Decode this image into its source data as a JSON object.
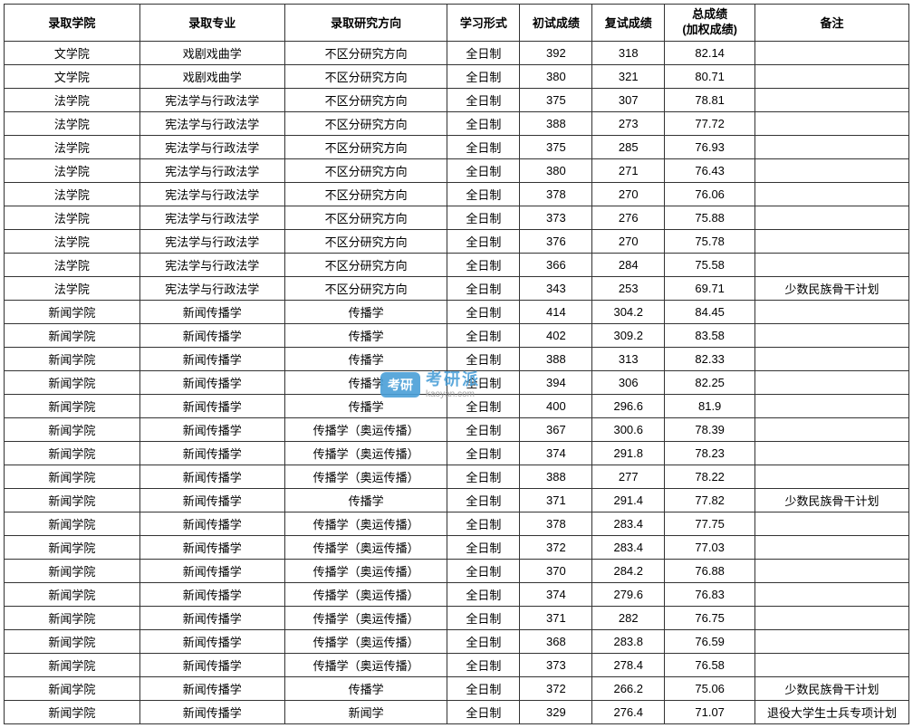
{
  "table": {
    "columns": [
      "录取学院",
      "录取专业",
      "录取研究方向",
      "学习形式",
      "初试成绩",
      "复试成绩",
      "总成绩\n(加权成绩)",
      "备注"
    ],
    "header_total_line1": "总成绩",
    "header_total_line2": "(加权成绩)",
    "rows": [
      [
        "文学院",
        "戏剧戏曲学",
        "不区分研究方向",
        "全日制",
        "392",
        "318",
        "82.14",
        ""
      ],
      [
        "文学院",
        "戏剧戏曲学",
        "不区分研究方向",
        "全日制",
        "380",
        "321",
        "80.71",
        ""
      ],
      [
        "法学院",
        "宪法学与行政法学",
        "不区分研究方向",
        "全日制",
        "375",
        "307",
        "78.81",
        ""
      ],
      [
        "法学院",
        "宪法学与行政法学",
        "不区分研究方向",
        "全日制",
        "388",
        "273",
        "77.72",
        ""
      ],
      [
        "法学院",
        "宪法学与行政法学",
        "不区分研究方向",
        "全日制",
        "375",
        "285",
        "76.93",
        ""
      ],
      [
        "法学院",
        "宪法学与行政法学",
        "不区分研究方向",
        "全日制",
        "380",
        "271",
        "76.43",
        ""
      ],
      [
        "法学院",
        "宪法学与行政法学",
        "不区分研究方向",
        "全日制",
        "378",
        "270",
        "76.06",
        ""
      ],
      [
        "法学院",
        "宪法学与行政法学",
        "不区分研究方向",
        "全日制",
        "373",
        "276",
        "75.88",
        ""
      ],
      [
        "法学院",
        "宪法学与行政法学",
        "不区分研究方向",
        "全日制",
        "376",
        "270",
        "75.78",
        ""
      ],
      [
        "法学院",
        "宪法学与行政法学",
        "不区分研究方向",
        "全日制",
        "366",
        "284",
        "75.58",
        ""
      ],
      [
        "法学院",
        "宪法学与行政法学",
        "不区分研究方向",
        "全日制",
        "343",
        "253",
        "69.71",
        "少数民族骨干计划"
      ],
      [
        "新闻学院",
        "新闻传播学",
        "传播学",
        "全日制",
        "414",
        "304.2",
        "84.45",
        ""
      ],
      [
        "新闻学院",
        "新闻传播学",
        "传播学",
        "全日制",
        "402",
        "309.2",
        "83.58",
        ""
      ],
      [
        "新闻学院",
        "新闻传播学",
        "传播学",
        "全日制",
        "388",
        "313",
        "82.33",
        ""
      ],
      [
        "新闻学院",
        "新闻传播学",
        "传播学",
        "全日制",
        "394",
        "306",
        "82.25",
        ""
      ],
      [
        "新闻学院",
        "新闻传播学",
        "传播学",
        "全日制",
        "400",
        "296.6",
        "81.9",
        ""
      ],
      [
        "新闻学院",
        "新闻传播学",
        "传播学（奥运传播）",
        "全日制",
        "367",
        "300.6",
        "78.39",
        ""
      ],
      [
        "新闻学院",
        "新闻传播学",
        "传播学（奥运传播）",
        "全日制",
        "374",
        "291.8",
        "78.23",
        ""
      ],
      [
        "新闻学院",
        "新闻传播学",
        "传播学（奥运传播）",
        "全日制",
        "388",
        "277",
        "78.22",
        ""
      ],
      [
        "新闻学院",
        "新闻传播学",
        "传播学",
        "全日制",
        "371",
        "291.4",
        "77.82",
        "少数民族骨干计划"
      ],
      [
        "新闻学院",
        "新闻传播学",
        "传播学（奥运传播）",
        "全日制",
        "378",
        "283.4",
        "77.75",
        ""
      ],
      [
        "新闻学院",
        "新闻传播学",
        "传播学（奥运传播）",
        "全日制",
        "372",
        "283.4",
        "77.03",
        ""
      ],
      [
        "新闻学院",
        "新闻传播学",
        "传播学（奥运传播）",
        "全日制",
        "370",
        "284.2",
        "76.88",
        ""
      ],
      [
        "新闻学院",
        "新闻传播学",
        "传播学（奥运传播）",
        "全日制",
        "374",
        "279.6",
        "76.83",
        ""
      ],
      [
        "新闻学院",
        "新闻传播学",
        "传播学（奥运传播）",
        "全日制",
        "371",
        "282",
        "76.75",
        ""
      ],
      [
        "新闻学院",
        "新闻传播学",
        "传播学（奥运传播）",
        "全日制",
        "368",
        "283.8",
        "76.59",
        ""
      ],
      [
        "新闻学院",
        "新闻传播学",
        "传播学（奥运传播）",
        "全日制",
        "373",
        "278.4",
        "76.58",
        ""
      ],
      [
        "新闻学院",
        "新闻传播学",
        "传播学",
        "全日制",
        "372",
        "266.2",
        "75.06",
        "少数民族骨干计划"
      ],
      [
        "新闻学院",
        "新闻传播学",
        "新闻学",
        "全日制",
        "329",
        "276.4",
        "71.07",
        "退役大学生士兵专项计划"
      ]
    ],
    "border_color": "#333333",
    "background_color": "#ffffff",
    "text_color": "#000000",
    "font_size": 13
  },
  "watermark": {
    "badge_text": "考研",
    "main_text": "考研派",
    "sub_text": "kaoyan.com",
    "badge_bg": "#4a9fd8",
    "badge_color": "#ffffff",
    "main_color": "#4a9fd8",
    "sub_color": "#999999"
  }
}
